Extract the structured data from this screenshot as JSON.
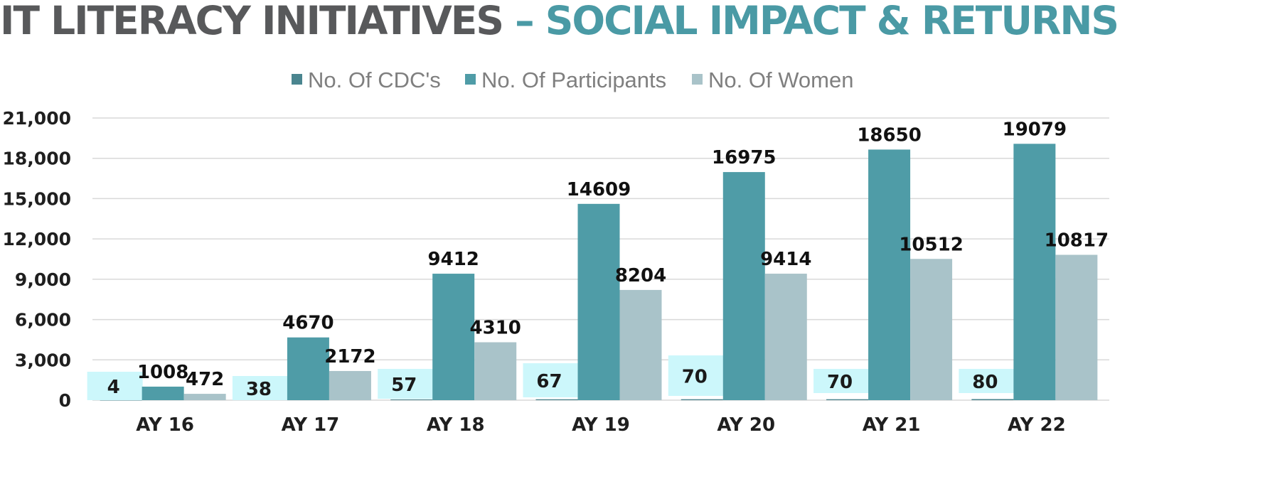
{
  "title": {
    "part1": "IT LITERACY INITIATIVES ",
    "separator": "–",
    "part2": " SOCIAL IMPACT & RETURNS"
  },
  "colors": {
    "title_dark": "#58595b",
    "title_accent": "#4a9aa5",
    "cdc_series": "#4a858f",
    "participants_series": "#4f9ca7",
    "women_series": "#a9c3c9",
    "cdc_label_box": "#ccf7fb",
    "grid": "#d9d9d9"
  },
  "chart_data": {
    "type": "bar",
    "categories": [
      "AY 16",
      "AY 17",
      "AY 18",
      "AY 19",
      "AY 20",
      "AY 21",
      "AY 22"
    ],
    "series": [
      {
        "name": "No. Of CDC's",
        "values": [
          4,
          38,
          57,
          67,
          70,
          70,
          80
        ]
      },
      {
        "name": "No. Of Participants",
        "values": [
          1008,
          4670,
          9412,
          14609,
          16975,
          18650,
          19079
        ]
      },
      {
        "name": "No. Of Women",
        "values": [
          472,
          2172,
          4310,
          8204,
          9414,
          10512,
          10817
        ]
      }
    ],
    "ylim": [
      0,
      21000
    ],
    "yticks": [
      0,
      3000,
      6000,
      9000,
      12000,
      15000,
      18000,
      21000
    ],
    "ytick_labels": [
      "0",
      "3,000",
      "6,000",
      "9,000",
      "12,000",
      "15,000",
      "18,000",
      "21,000"
    ],
    "xlabel": "",
    "ylabel": "",
    "grid": true,
    "legend_position": "top-center"
  }
}
